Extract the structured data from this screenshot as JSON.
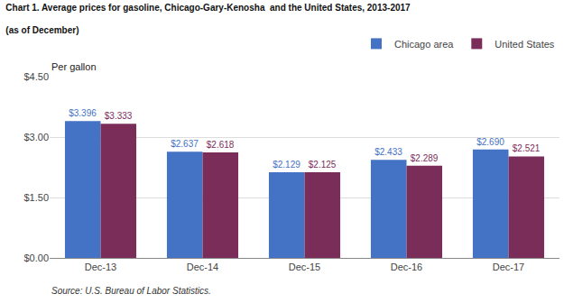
{
  "chart_data": {
    "type": "bar",
    "title": "Chart 1. Average prices for gasoline, Chicago-Gary-Kenosha  and the United States, 2013-2017",
    "subtitle": "(as of December)",
    "ylabel": "Per gallon",
    "annotations": [
      "Source: U.S. Bureau of Labor Statistics."
    ],
    "categories": [
      "Dec-13",
      "Dec-14",
      "Dec-15",
      "Dec-16",
      "Dec-17"
    ],
    "series": [
      {
        "name": "Chicago area",
        "color": "#4472C4",
        "values": [
          3.396,
          2.637,
          2.129,
          2.433,
          2.69
        ],
        "value_labels": [
          "$3.396",
          "$2.637",
          "$2.129",
          "$2.433",
          "$2.690"
        ]
      },
      {
        "name": "United States",
        "color": "#7B2D5A",
        "values": [
          3.333,
          2.618,
          2.125,
          2.289,
          2.521
        ],
        "value_labels": [
          "$3.333",
          "$2.618",
          "$2.125",
          "$2.289",
          "$2.521"
        ]
      }
    ],
    "ylim": [
      0,
      4.5
    ],
    "yticks": [
      {
        "value": 0.0,
        "label": "$0.00"
      },
      {
        "value": 1.5,
        "label": "$1.50"
      },
      {
        "value": 3.0,
        "label": "$3.00"
      },
      {
        "value": 4.5,
        "label": "$4.50"
      }
    ],
    "grid": true,
    "legend": "upper right",
    "data_labels": true
  }
}
